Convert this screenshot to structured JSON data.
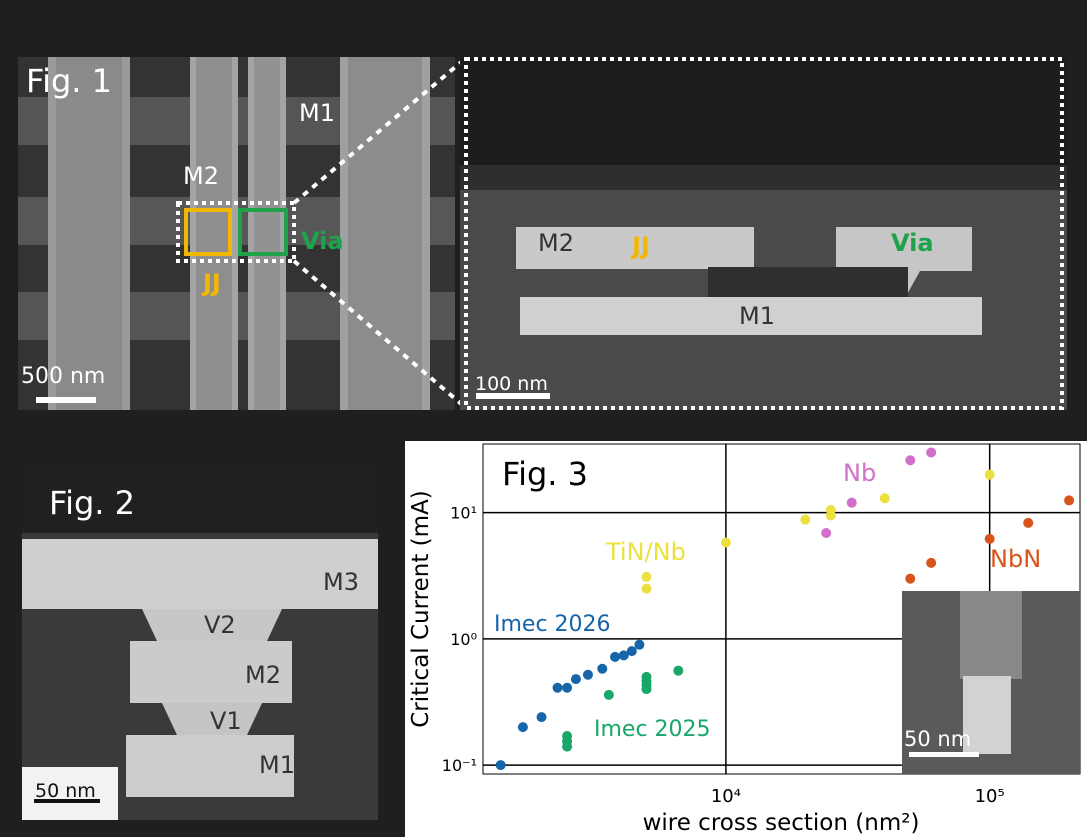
{
  "fig1": {
    "label": "Fig. 1",
    "m1": "M1",
    "m2": "M2",
    "jj": "JJ",
    "via": "Via",
    "scalebar": "500 nm",
    "zoom": {
      "m2": "M2",
      "jj": "JJ",
      "via": "Via",
      "m1": "M1",
      "scalebar": "100 nm"
    }
  },
  "fig2": {
    "label": "Fig. 2",
    "m3": "M3",
    "v2": "V2",
    "m2": "M2",
    "v1": "V1",
    "m1": "M1",
    "scalebar": "50 nm"
  },
  "fig3": {
    "label": "Fig. 3",
    "inset_scalebar": "50 nm"
  },
  "colors": {
    "jj": "#f2b705",
    "via": "#1fa34a",
    "nb": "#d070c8",
    "tin_nb": "#ece040",
    "nbn": "#d9541a",
    "imec2026": "#1565a8",
    "imec2025": "#17a769"
  },
  "chart_data": {
    "type": "scatter",
    "xlabel": "wire cross section (nm²)",
    "ylabel": "Critical Current (mA)",
    "xscale": "log",
    "yscale": "log",
    "xlim": [
      1200,
      220000
    ],
    "ylim": [
      0.085,
      35
    ],
    "x_ticks": [
      10000,
      100000
    ],
    "x_tick_labels": [
      "10⁴",
      "10⁵"
    ],
    "y_ticks": [
      0.1,
      1,
      10
    ],
    "y_tick_labels": [
      "10⁻¹",
      "10⁰",
      "10¹"
    ],
    "grid": true,
    "series": [
      {
        "name": "Nb",
        "color": "#d070c8",
        "points": [
          [
            24000,
            6.9
          ],
          [
            30000,
            12
          ],
          [
            50000,
            26
          ],
          [
            60000,
            30
          ]
        ]
      },
      {
        "name": "TiN/Nb",
        "color": "#ece040",
        "points": [
          [
            5000,
            3.1
          ],
          [
            5000,
            2.5
          ],
          [
            10000,
            5.8
          ],
          [
            20000,
            8.8
          ],
          [
            25000,
            9.5
          ],
          [
            25000,
            10.5
          ],
          [
            40000,
            13
          ],
          [
            100000,
            20
          ]
        ]
      },
      {
        "name": "NbN",
        "color": "#d9541a",
        "points": [
          [
            50000,
            3
          ],
          [
            60000,
            4
          ],
          [
            100000,
            6.2
          ],
          [
            140000,
            8.3
          ],
          [
            200000,
            12.5
          ]
        ]
      },
      {
        "name": "Imec 2026",
        "color": "#1565a8",
        "points": [
          [
            1400,
            0.1
          ],
          [
            1700,
            0.2
          ],
          [
            2000,
            0.24
          ],
          [
            2300,
            0.41
          ],
          [
            2500,
            0.41
          ],
          [
            2700,
            0.48
          ],
          [
            3000,
            0.52
          ],
          [
            3400,
            0.58
          ],
          [
            3800,
            0.72
          ],
          [
            4100,
            0.74
          ],
          [
            4400,
            0.8
          ],
          [
            4700,
            0.9
          ]
        ]
      },
      {
        "name": "Imec 2025",
        "color": "#17a769",
        "points": [
          [
            2500,
            0.14
          ],
          [
            2500,
            0.155
          ],
          [
            2500,
            0.17
          ],
          [
            3600,
            0.36
          ],
          [
            5000,
            0.4
          ],
          [
            5000,
            0.43
          ],
          [
            5000,
            0.46
          ],
          [
            5000,
            0.5
          ],
          [
            6600,
            0.56
          ]
        ]
      }
    ],
    "series_labels": {
      "nb": "Nb",
      "tin_nb": "TiN/Nb",
      "nbn": "NbN",
      "imec2026": "Imec 2026",
      "imec2025": "Imec 2025"
    }
  }
}
